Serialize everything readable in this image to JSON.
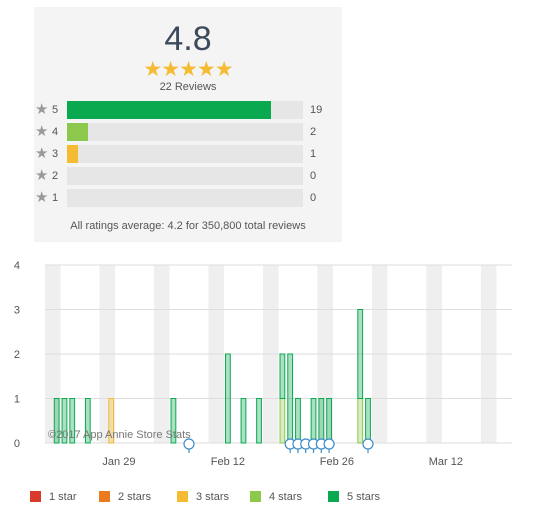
{
  "summary": {
    "average": "4.8",
    "stars": "★★★★★",
    "reviews_label": "22 Reviews",
    "star_glyph": "★",
    "rows": [
      {
        "level": "5",
        "count": "19",
        "value": 19,
        "color": "#0aa84f"
      },
      {
        "level": "4",
        "count": "2",
        "value": 2,
        "color": "#8cc84b"
      },
      {
        "level": "3",
        "count": "1",
        "value": 1,
        "color": "#f4bb33"
      },
      {
        "level": "2",
        "count": "0",
        "value": 0,
        "color": "#ec7a1f"
      },
      {
        "level": "1",
        "count": "0",
        "value": 0,
        "color": "#d93a2b"
      }
    ],
    "max_count": 22,
    "all_ratings_text": "All ratings average: 4.2 for 350,800 total reviews"
  },
  "chart_data": {
    "type": "bar",
    "stacked": true,
    "y_ticks": [
      "0",
      "1",
      "2",
      "3",
      "4"
    ],
    "ylim": [
      0,
      4
    ],
    "x_ticks": [
      {
        "label": "Jan 29",
        "day": 9
      },
      {
        "label": "Feb 12",
        "day": 23
      },
      {
        "label": "Feb 26",
        "day": 37
      },
      {
        "label": "Mar 12",
        "day": 51
      }
    ],
    "x_start": "Jan 20",
    "x_end": "Mar 20",
    "watermark": "©2017 App Annie Store Stats",
    "series": [
      {
        "name": "1 star",
        "color": "#d93a2b",
        "points": []
      },
      {
        "name": "2 stars",
        "color": "#ec7a1f",
        "points": []
      },
      {
        "name": "3 stars",
        "color": "#f4bb33",
        "points": [
          [
            8,
            1
          ]
        ]
      },
      {
        "name": "4 stars",
        "color": "#8cc84b",
        "points": [
          [
            30,
            1
          ],
          [
            40,
            1
          ]
        ]
      },
      {
        "name": "5 stars",
        "color": "#0aa84f",
        "points": [
          [
            1,
            1
          ],
          [
            2,
            1
          ],
          [
            3,
            1
          ],
          [
            5,
            1
          ],
          [
            16,
            1
          ],
          [
            23,
            2
          ],
          [
            25,
            1
          ],
          [
            27,
            1
          ],
          [
            30,
            1
          ],
          [
            31,
            2
          ],
          [
            32,
            1
          ],
          [
            34,
            1
          ],
          [
            35,
            1
          ],
          [
            36,
            1
          ],
          [
            40,
            2
          ],
          [
            41,
            1
          ]
        ]
      }
    ],
    "annotation_days": [
      18,
      31,
      32,
      33,
      34,
      35,
      36,
      41
    ],
    "legend": [
      "1 star",
      "2 stars",
      "3 stars",
      "4 stars",
      "5 stars"
    ]
  }
}
